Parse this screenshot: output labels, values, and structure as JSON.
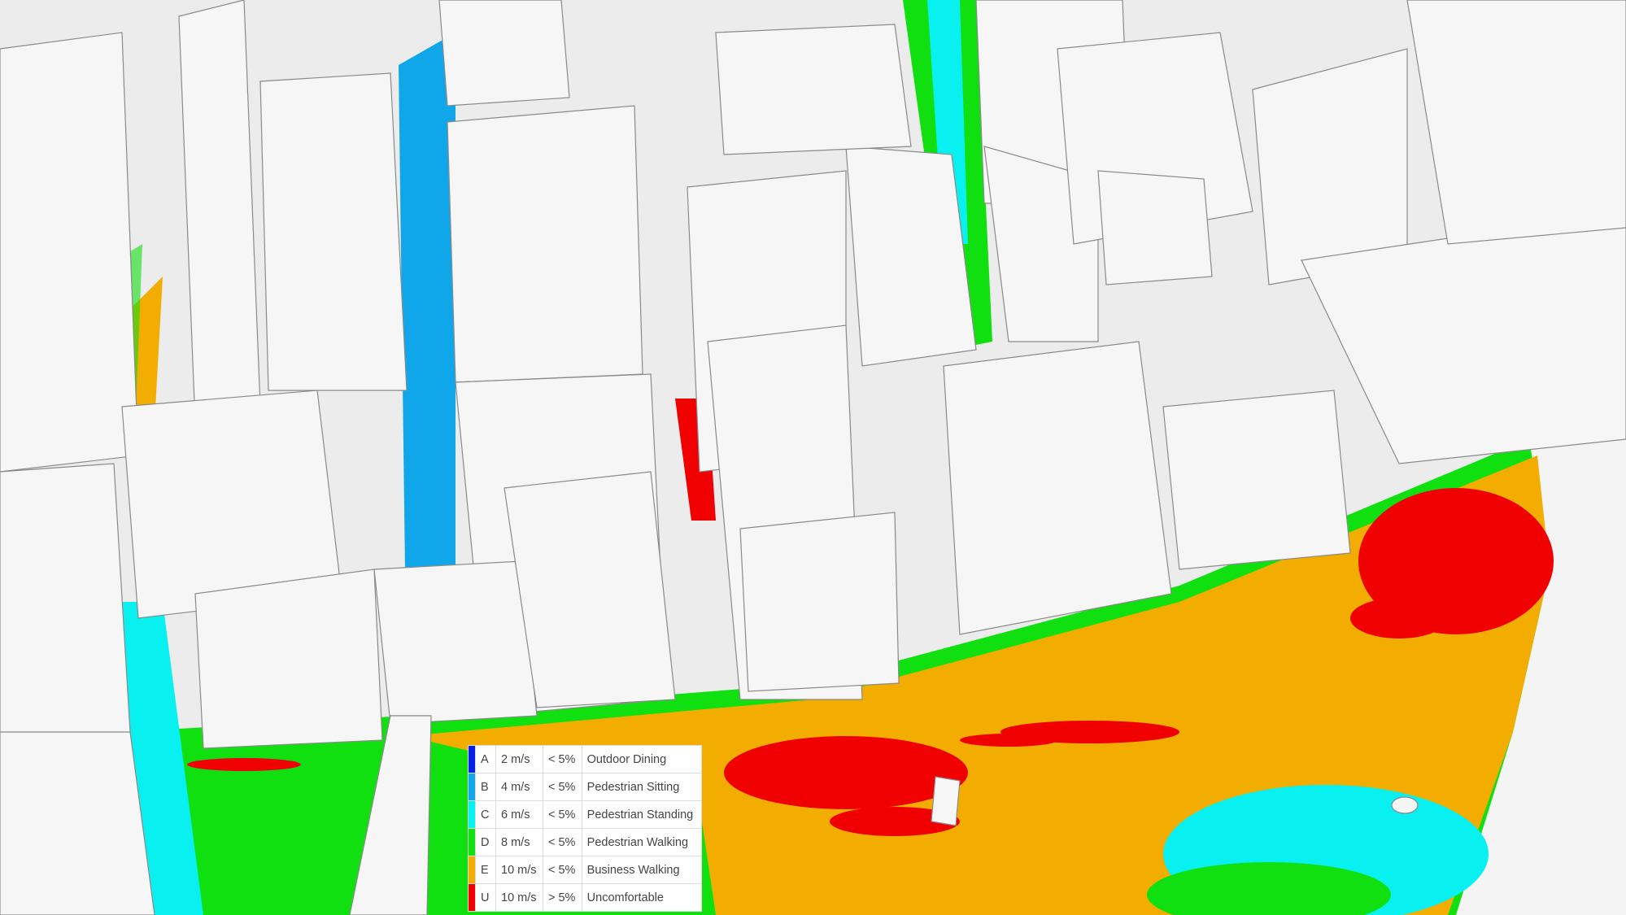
{
  "legend": {
    "rows": [
      {
        "code": "A",
        "speed": "2 m/s",
        "exceedance": "< 5%",
        "label": "Outdoor Dining",
        "color": "#0a1ee6"
      },
      {
        "code": "B",
        "speed": "4 m/s",
        "exceedance": "< 5%",
        "label": "Pedestrian Sitting",
        "color": "#10a6ea"
      },
      {
        "code": "C",
        "speed": "6 m/s",
        "exceedance": "< 5%",
        "label": "Pedestrian Standing",
        "color": "#08f0f0"
      },
      {
        "code": "D",
        "speed": "8 m/s",
        "exceedance": "< 5%",
        "label": "Pedestrian Walking",
        "color": "#10e010"
      },
      {
        "code": "E",
        "speed": "10 m/s",
        "exceedance": "< 5%",
        "label": "Business Walking",
        "color": "#f2ad00"
      },
      {
        "code": "U",
        "speed": "10 m/s",
        "exceedance": "> 5%",
        "label": "Uncomfortable",
        "color": "#f00000"
      }
    ]
  }
}
